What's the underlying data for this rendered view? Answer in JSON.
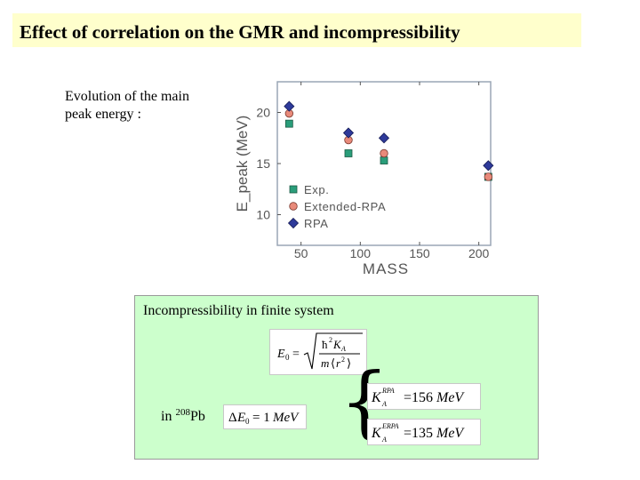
{
  "slide": {
    "title": "Effect of correlation on the GMR and incompressibility",
    "caption": "Evolution of the main peak energy :",
    "box_title": "Incompressibility in finite system",
    "in_pb_prefix": "in ",
    "in_pb_mass": "208",
    "in_pb_symbol": "Pb",
    "formula_e0": "E0 = sqrt( ħ² K_A / m <r²> )",
    "formula_de": "ΔE0 = 1MeV",
    "formula_rpa": "K_A^RPA = 156MeV",
    "formula_erpa": "K_A^ERPA = 135MeV",
    "brace": "{",
    "colors": {
      "title_bg": "#ffffcc",
      "box_bg": "#ccffcc"
    }
  },
  "chart_data": {
    "type": "scatter",
    "xlabel": "MASS",
    "ylabel": "E_peak (MeV)",
    "xlim": [
      30,
      210
    ],
    "ylim": [
      7,
      23
    ],
    "x_ticks": [
      50,
      100,
      150,
      200
    ],
    "y_ticks": [
      10,
      15,
      20
    ],
    "series": [
      {
        "name": "Exp.",
        "marker": "square",
        "color": "#2a9d7a",
        "x": [
          40,
          90,
          120,
          208
        ],
        "y": [
          18.9,
          16.0,
          15.3,
          13.7
        ]
      },
      {
        "name": "Extended-RPA",
        "marker": "circle",
        "color": "#e88a7a",
        "x": [
          40,
          90,
          120,
          208
        ],
        "y": [
          19.9,
          17.3,
          16.0,
          13.7
        ]
      },
      {
        "name": "RPA",
        "marker": "diamond",
        "color": "#2e3a9a",
        "x": [
          40,
          90,
          120,
          208
        ],
        "y": [
          20.6,
          18.0,
          17.5,
          14.8
        ]
      }
    ]
  }
}
